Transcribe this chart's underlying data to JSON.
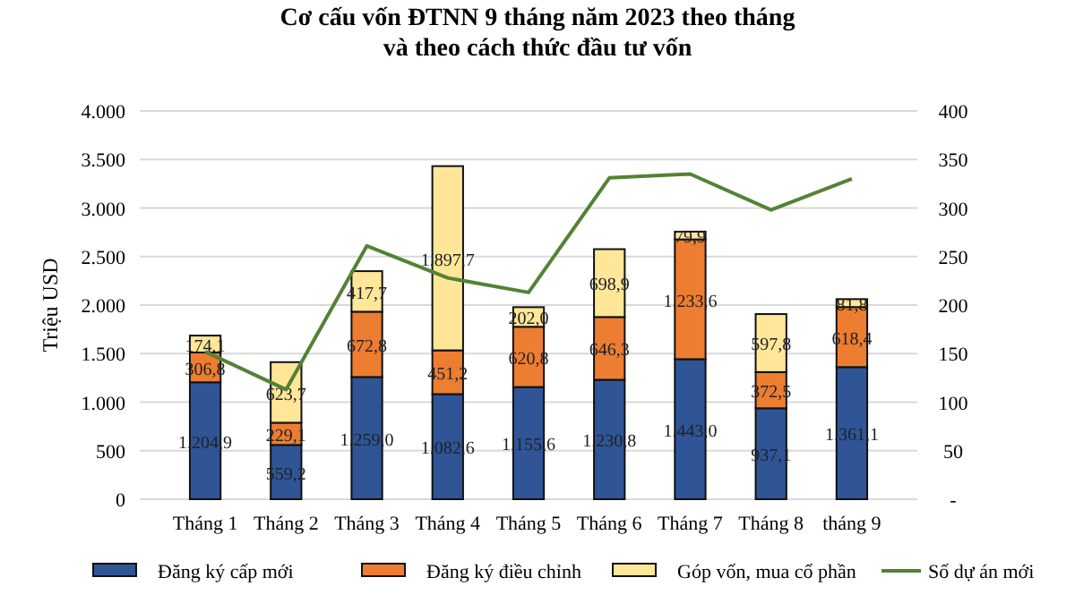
{
  "chart_data": {
    "type": "bar",
    "stacked": true,
    "title": "Cơ cấu vốn ĐTNN 9 tháng năm 2023 theo tháng\nvà theo cách thức đầu tư vốn",
    "ylabel": "Triệu USD",
    "categories": [
      "Tháng 1",
      "Tháng 2",
      "Tháng 3",
      "Tháng 4",
      "Tháng 5",
      "Tháng 6",
      "Tháng 7",
      "Tháng 8",
      "tháng 9"
    ],
    "series": [
      {
        "name": "Đăng ký cấp mới",
        "color": "#2f5597",
        "values": [
          1204.9,
          559.2,
          1259.0,
          1082.6,
          1155.6,
          1230.8,
          1443.0,
          937.1,
          1361.1
        ],
        "value_labels": [
          "1.204,9",
          "559,2",
          "1.259,0",
          "1.082,6",
          "1.155,6",
          "1.230,8",
          "1.443,0",
          "937,1",
          "1.361,1"
        ]
      },
      {
        "name": "Đăng ký điều chỉnh",
        "color": "#ed7d31",
        "values": [
          306.8,
          229.1,
          672.8,
          451.2,
          620.8,
          646.3,
          1233.6,
          372.5,
          618.4
        ],
        "value_labels": [
          "306,8",
          "229,1",
          "672,8",
          "451,2",
          "620,8",
          "646,3",
          "1.233,6",
          "372,5",
          "618,4"
        ]
      },
      {
        "name": "Góp vốn, mua cổ phần",
        "color": "#ffe699",
        "values": [
          174.1,
          623.7,
          417.7,
          1897.7,
          202.0,
          698.9,
          79.9,
          597.8,
          81.8
        ],
        "value_labels": [
          "174,1",
          "623,7",
          "417,7",
          "1.897,7",
          "202,0",
          "698,9",
          "79,9",
          "597,8",
          "81,8"
        ]
      },
      {
        "name": "Số dự án mới",
        "type": "line",
        "axis": "y2",
        "color": "#548235",
        "values": [
          152,
          113,
          261,
          228,
          213,
          331,
          335,
          298,
          330
        ]
      }
    ],
    "ylim": [
      0,
      4000
    ],
    "yticks": [
      0,
      {
        "value": 500,
        "label": "500"
      },
      {
        "value": 1000,
        "label": "1.000"
      },
      {
        "value": 1500,
        "label": "1.500"
      },
      {
        "value": 2000,
        "label": "2.000"
      },
      {
        "value": 2500,
        "label": "2.500"
      },
      {
        "value": 3000,
        "label": "3.000"
      },
      {
        "value": 3500,
        "label": "3.500"
      },
      {
        "value": 4000,
        "label": "4.000"
      }
    ],
    "y2lim": [
      0,
      400
    ],
    "y2ticks": [
      {
        "value": 0,
        "label": "-"
      },
      50,
      100,
      150,
      200,
      250,
      300,
      350,
      400
    ],
    "grid": "y",
    "legend": "bottom",
    "marker": "none"
  }
}
